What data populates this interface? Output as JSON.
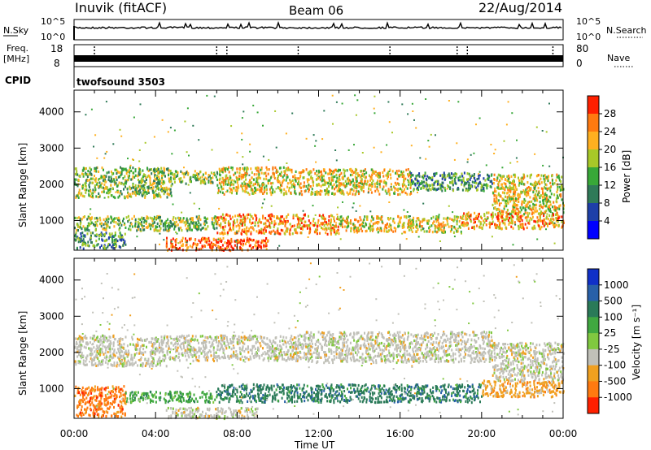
{
  "header": {
    "station": "Inuvik (fitACF)",
    "beam": "Beam 06",
    "date": "22/Aug/2014"
  },
  "noise_panel": {
    "left_label": "N.Sky",
    "right_label": "N.Search",
    "left_ticks": [
      "10^5",
      "10^0"
    ],
    "right_ticks": [
      "10^5",
      "10^0"
    ]
  },
  "freq_panel": {
    "left_label_1": "Freq.",
    "left_label_2": "[MHz]",
    "right_label": "Nave",
    "left_ticks": [
      "18",
      "8"
    ],
    "right_ticks": [
      "80",
      "0"
    ],
    "cpid_label": "CPID",
    "cpid_value": "twofsound 3503"
  },
  "x_axis": {
    "label": "Time UT",
    "ticks": [
      "00:00",
      "04:00",
      "08:00",
      "12:00",
      "16:00",
      "20:00",
      "00:00"
    ]
  },
  "power_panel": {
    "ylabel": "Slant Range [km]",
    "yticks": [
      "1000",
      "2000",
      "3000",
      "4000"
    ],
    "colorbar_label": "Power [dB]",
    "colorbar_ticks": [
      "4",
      "8",
      "12",
      "16",
      "20",
      "24",
      "28"
    ],
    "colors": [
      "#0000ff",
      "#1e3fa8",
      "#2f7a58",
      "#38a838",
      "#a8c828",
      "#ffb020",
      "#ff7a10",
      "#ff2000"
    ]
  },
  "velocity_panel": {
    "ylabel": "Slant Range [km]",
    "yticks": [
      "1000",
      "2000",
      "3000",
      "4000"
    ],
    "colorbar_label": "Velocity [m s⁻¹]",
    "colorbar_ticks": [
      "1000",
      "500",
      "100",
      "25",
      "-25",
      "-100",
      "-500",
      "-1000"
    ],
    "colors": [
      "#1030c8",
      "#2860a8",
      "#2a7a58",
      "#40a840",
      "#80c840",
      "#c0c0b8",
      "#f0a020",
      "#ff7a10",
      "#ff2000"
    ]
  },
  "chart_data": {
    "type": "heatmap",
    "x_range_hours": [
      0,
      24
    ],
    "y_range_km": [
      180,
      4600
    ],
    "power_regions": [
      {
        "t0": 0,
        "t1": 4.8,
        "r0": 1650,
        "r1": 2500,
        "db": 19
      },
      {
        "t0": 4.8,
        "t1": 7.0,
        "r0": 2050,
        "r1": 2400,
        "db": 17
      },
      {
        "t0": 7.0,
        "t1": 10.5,
        "r0": 1750,
        "r1": 2500,
        "db": 21
      },
      {
        "t0": 10.5,
        "t1": 16.5,
        "r0": 1750,
        "r1": 2450,
        "db": 20
      },
      {
        "t0": 16.5,
        "t1": 20.5,
        "r0": 1850,
        "r1": 2350,
        "db": 15
      },
      {
        "t0": 20.5,
        "t1": 24,
        "r0": 1200,
        "r1": 2300,
        "db": 22
      },
      {
        "t0": 0,
        "t1": 7.0,
        "r0": 750,
        "r1": 1150,
        "db": 17
      },
      {
        "t0": 7.0,
        "t1": 13.0,
        "r0": 650,
        "r1": 1200,
        "db": 26
      },
      {
        "t0": 13.0,
        "t1": 19.0,
        "r0": 700,
        "r1": 1150,
        "db": 22
      },
      {
        "t0": 19.0,
        "t1": 24,
        "r0": 800,
        "r1": 1250,
        "db": 24
      },
      {
        "t0": 0,
        "t1": 2.5,
        "r0": 250,
        "r1": 700,
        "db": 14
      },
      {
        "t0": 4.5,
        "t1": 9.5,
        "r0": 200,
        "r1": 550,
        "db": 30
      }
    ],
    "velocity_regions": [
      {
        "t0": 0,
        "t1": 4.5,
        "r0": 1650,
        "r1": 2500,
        "v": 0
      },
      {
        "t0": 4.5,
        "t1": 11.0,
        "r0": 1800,
        "r1": 2500,
        "v": -10
      },
      {
        "t0": 11.0,
        "t1": 20.5,
        "r0": 1750,
        "r1": 2600,
        "v": 5
      },
      {
        "t0": 20.5,
        "t1": 24,
        "r0": 1250,
        "r1": 2300,
        "v": 10
      },
      {
        "t0": 0,
        "t1": 2.5,
        "r0": 250,
        "r1": 1100,
        "v": -200
      },
      {
        "t0": 2.5,
        "t1": 7.0,
        "r0": 650,
        "r1": 950,
        "v": 60
      },
      {
        "t0": 7.0,
        "t1": 11.0,
        "r0": 650,
        "r1": 1150,
        "v": 150
      },
      {
        "t0": 11.0,
        "t1": 20.0,
        "r0": 650,
        "r1": 1150,
        "v": 300
      },
      {
        "t0": 20.0,
        "t1": 24,
        "r0": 800,
        "r1": 1250,
        "v": -80
      },
      {
        "t0": 4.5,
        "t1": 9.0,
        "r0": 200,
        "r1": 500,
        "v": 0
      }
    ]
  }
}
